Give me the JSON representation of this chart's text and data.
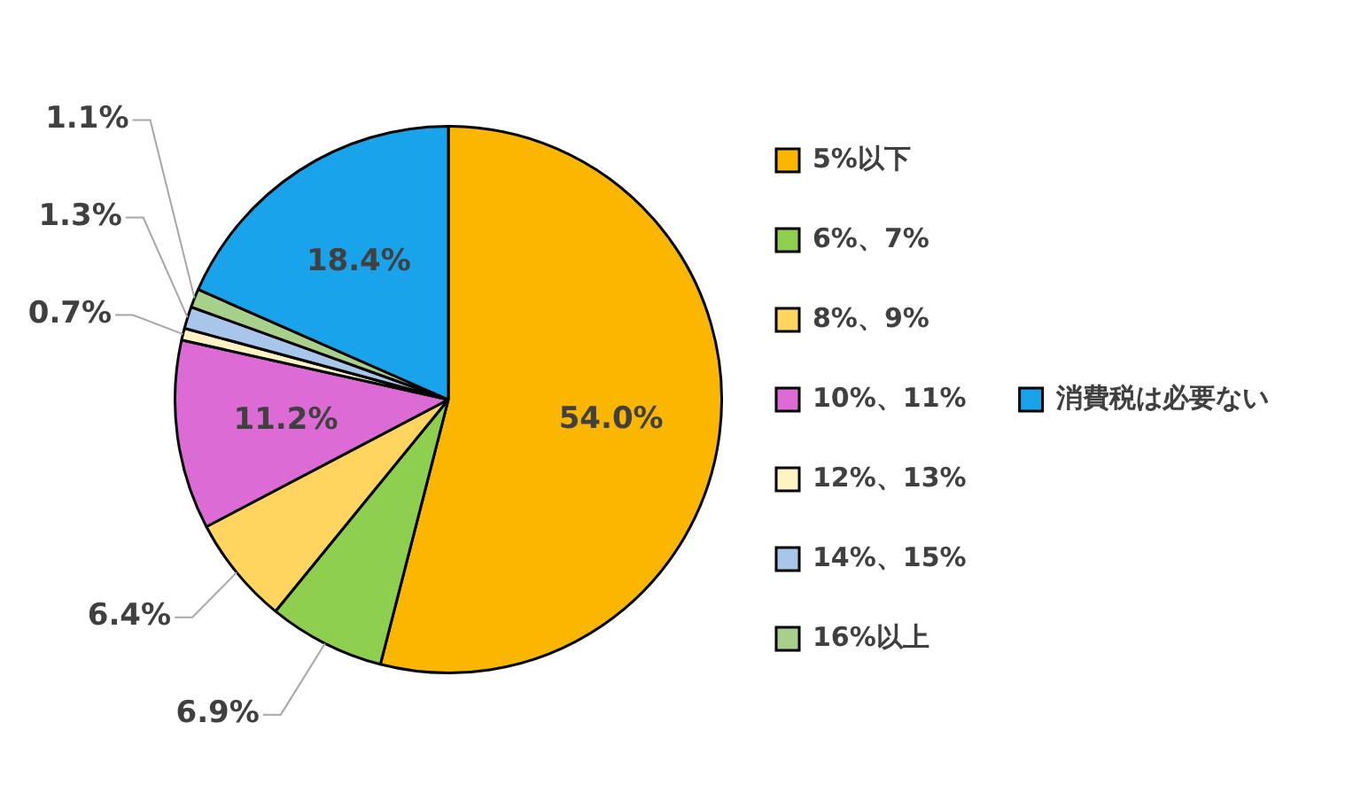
{
  "chart_data": {
    "type": "pie",
    "categories": [
      "5%以下",
      "6%、7%",
      "8%、9%",
      "10%、11%",
      "12%、13%",
      "14%、15%",
      "16%以上",
      "消費税は必要ない"
    ],
    "values": [
      54.0,
      6.9,
      6.4,
      11.2,
      0.7,
      1.3,
      1.1,
      18.4
    ],
    "colors": [
      "#fbb700",
      "#8fcf4f",
      "#ffd560",
      "#dc6bd6",
      "#fff3c4",
      "#a8c6ea",
      "#a7d18a",
      "#19a3ea"
    ],
    "value_labels": [
      "54.0%",
      "6.9%",
      "6.4%",
      "11.2%",
      "0.7%",
      "1.3%",
      "1.1%",
      "18.4%"
    ],
    "legend": "right"
  }
}
